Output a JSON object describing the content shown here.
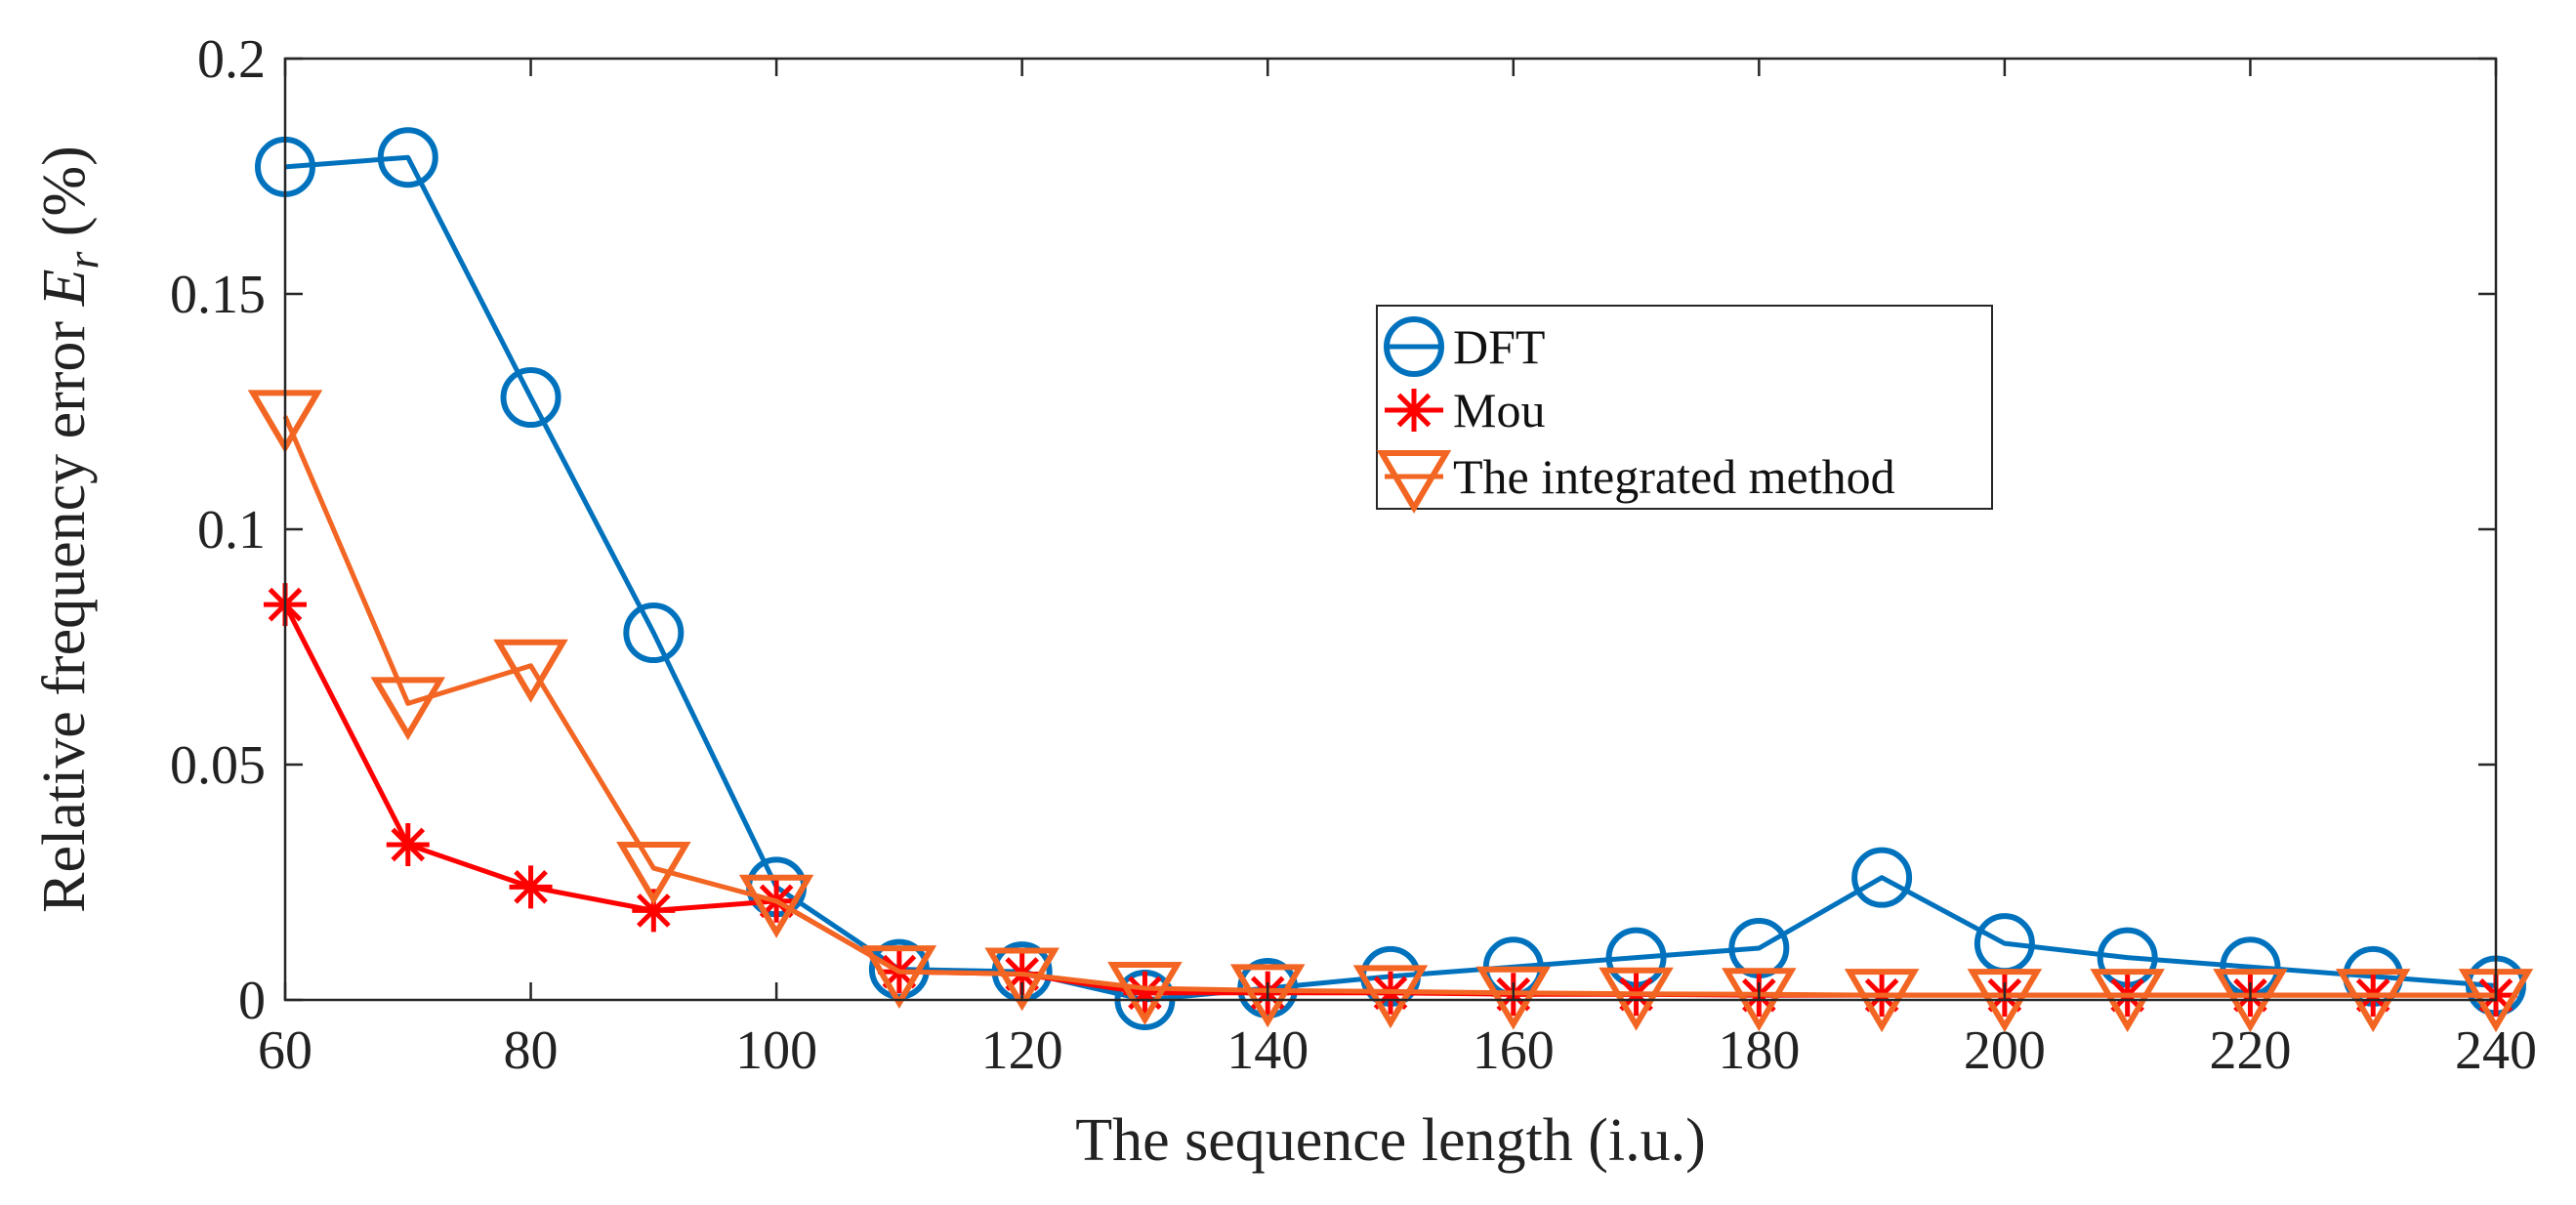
{
  "chart_data": {
    "type": "line",
    "title": "",
    "xlabel": "The sequence length  (i.u.)",
    "ylabel": {
      "prefix": "Relative frequency error ",
      "symbol": "E",
      "subscript": "r",
      "suffix": " (%)"
    },
    "xlim": [
      60,
      240
    ],
    "ylim": [
      0,
      0.2
    ],
    "xticks": [
      60,
      80,
      100,
      120,
      140,
      160,
      180,
      200,
      220,
      240
    ],
    "xtick_labels": [
      "60",
      "80",
      "100",
      "120",
      "140",
      "160",
      "180",
      "200",
      "220",
      "240"
    ],
    "yticks": [
      0,
      0.05,
      0.1,
      0.15,
      0.2
    ],
    "ytick_labels": [
      "0",
      "0.05",
      "0.1",
      "0.15",
      "0.2"
    ],
    "grid": false,
    "legend_position": "upper-center-right",
    "x": [
      60,
      70,
      80,
      90,
      100,
      110,
      120,
      130,
      140,
      150,
      160,
      170,
      180,
      190,
      200,
      210,
      220,
      230,
      240
    ],
    "series": [
      {
        "name": "DFT",
        "color": "#0072BD",
        "marker": "circle",
        "values": [
          0.177,
          0.179,
          0.128,
          0.078,
          0.024,
          0.0065,
          0.006,
          0.0,
          0.0025,
          0.005,
          0.007,
          0.009,
          0.011,
          0.026,
          0.012,
          0.009,
          0.007,
          0.005,
          0.003
        ]
      },
      {
        "name": "Mou",
        "color": "#FF0000",
        "marker": "asterisk",
        "values": [
          0.084,
          0.033,
          0.024,
          0.019,
          0.021,
          0.006,
          0.0055,
          0.0015,
          0.0015,
          0.0015,
          0.0012,
          0.0012,
          0.001,
          0.001,
          0.001,
          0.001,
          0.001,
          0.001,
          0.001
        ]
      },
      {
        "name": "The integrated method",
        "color": "#F26522",
        "marker": "triangle-down",
        "values": [
          0.124,
          0.063,
          0.071,
          0.028,
          0.021,
          0.006,
          0.0055,
          0.0025,
          0.002,
          0.0018,
          0.0015,
          0.0013,
          0.0012,
          0.001,
          0.001,
          0.001,
          0.001,
          0.001,
          0.001
        ]
      }
    ]
  }
}
